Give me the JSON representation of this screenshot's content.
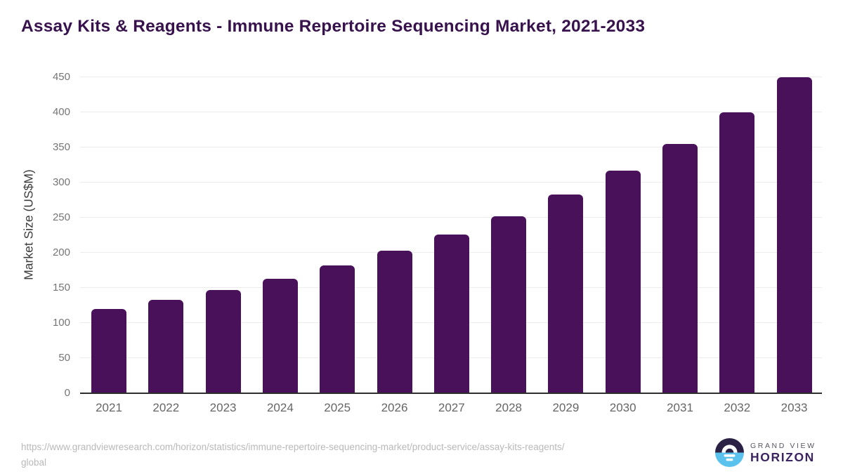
{
  "page": {
    "title": "Assay Kits & Reagents - Immune Repertoire Sequencing Market, 2021-2033",
    "source_url_line1": "https://www.grandviewresearch.com/horizon/statistics/immune-repertoire-sequencing-market/product-service/assay-kits-reagents/",
    "source_url_line2": "global",
    "logo": {
      "brand_top": "GRAND VIEW",
      "brand_bottom": "HORIZON"
    }
  },
  "colors": {
    "bar": "#481159",
    "title": "#37124d",
    "axis_line": "#2e2e2e",
    "gridline": "#ececec",
    "tick_label": "#757575",
    "x_tick_label": "#666666",
    "axis_title": "#3d3d3d",
    "footer_text": "#b9b9b9",
    "logo_dark": "#2b2145",
    "logo_blue": "#5bc2ee",
    "logo_text_top": "#5a5564",
    "logo_text_bottom": "#3b2460"
  },
  "chart_data": {
    "type": "bar",
    "title": "Assay Kits & Reagents - Immune Repertoire Sequencing Market, 2021-2033",
    "categories": [
      "2021",
      "2022",
      "2023",
      "2024",
      "2025",
      "2026",
      "2027",
      "2028",
      "2029",
      "2030",
      "2031",
      "2032",
      "2033"
    ],
    "values": [
      120,
      133,
      147,
      163,
      182,
      203,
      226,
      252,
      283,
      317,
      355,
      400,
      450
    ],
    "xlabel": "",
    "ylabel": "Market Size (US$M)",
    "ylim": [
      0,
      450
    ],
    "ytick_step": 50,
    "yticks": [
      0,
      50,
      100,
      150,
      200,
      250,
      300,
      350,
      400,
      450
    ],
    "grid": true,
    "legend": false,
    "bar_color": "#481159"
  }
}
